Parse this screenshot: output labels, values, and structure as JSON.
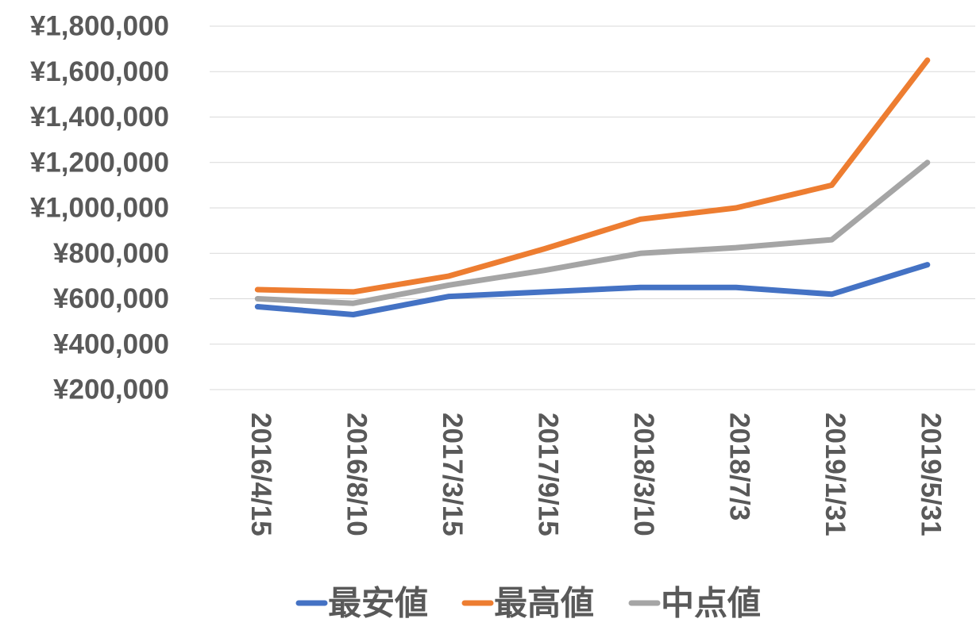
{
  "chart_data": {
    "type": "line",
    "title": "",
    "xlabel": "",
    "ylabel": "",
    "categories": [
      "2016/4/15",
      "2016/8/10",
      "2017/3/15",
      "2017/9/15",
      "2018/3/10",
      "2018/7/3",
      "2019/1/31",
      "2019/5/31"
    ],
    "ylim": [
      200000,
      1800000
    ],
    "y_ticks": [
      1800000,
      1600000,
      1400000,
      1200000,
      1000000,
      800000,
      600000,
      400000,
      200000
    ],
    "y_tick_labels": [
      "¥1,800,000",
      "¥1,600,000",
      "¥1,400,000",
      "¥1,200,000",
      "¥1,000,000",
      "¥800,000",
      "¥600,000",
      "¥400,000",
      "¥200,000"
    ],
    "grid": true,
    "legend_position": "bottom",
    "series": [
      {
        "name": "最安値",
        "color": "#4472c4",
        "values": [
          565000,
          530000,
          610000,
          630000,
          650000,
          650000,
          620000,
          750000
        ]
      },
      {
        "name": "最高値",
        "color": "#ed7d31",
        "values": [
          640000,
          630000,
          700000,
          820000,
          950000,
          1000000,
          1100000,
          1650000
        ]
      },
      {
        "name": "中点値",
        "color": "#a5a5a5",
        "values": [
          600000,
          580000,
          660000,
          725000,
          800000,
          825000,
          860000,
          1200000
        ]
      }
    ]
  }
}
